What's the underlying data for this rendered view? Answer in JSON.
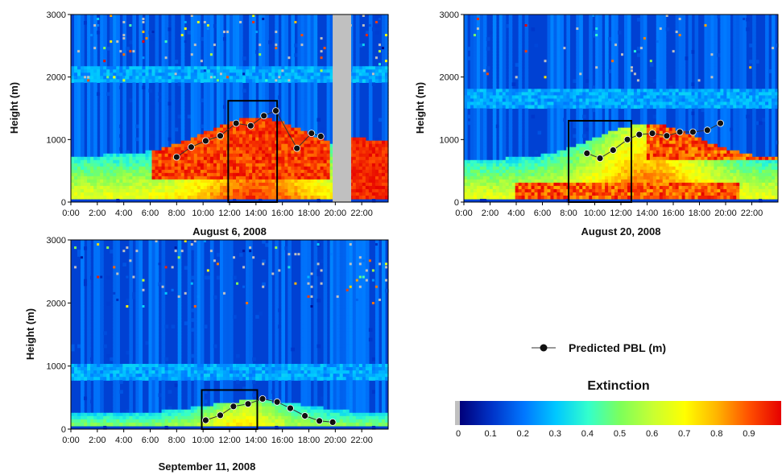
{
  "chart_data": [
    {
      "type": "heatmap",
      "title": "August 6, 2008",
      "ylabel": "Height (m)",
      "xlabel": "",
      "x_ticks": [
        "0:00",
        "2:00",
        "4:00",
        "6:00",
        "8:00",
        "10:00",
        "12:00",
        "14:00",
        "16:00",
        "18:00",
        "20:00",
        "22:00"
      ],
      "y_ticks": [
        "0",
        "1000",
        "2000",
        "3000"
      ],
      "xlim": [
        0,
        24
      ],
      "ylim": [
        0,
        3000
      ],
      "box": {
        "x0": 11.9,
        "x1": 15.6,
        "y0": 0,
        "y1": 1620
      },
      "gaps": [
        [
          19.8,
          21.2
        ]
      ],
      "features": {
        "cloud_top": 1350,
        "haze_band": 2050,
        "low_base": 400
      },
      "series": [
        {
          "name": "Predicted PBL (m)",
          "type": "line",
          "x": [
            8.0,
            9.1,
            10.2,
            11.3,
            12.5,
            13.6,
            14.6,
            15.5,
            17.1,
            18.2,
            18.9
          ],
          "y": [
            720,
            880,
            980,
            1060,
            1260,
            1220,
            1380,
            1460,
            860,
            1100,
            1050
          ]
        }
      ]
    },
    {
      "type": "heatmap",
      "title": "August 20, 2008",
      "ylabel": "Height (m)",
      "xlabel": "",
      "x_ticks": [
        "0:00",
        "2:00",
        "4:00",
        "6:00",
        "8:00",
        "10:00",
        "12:00",
        "14:00",
        "16:00",
        "18:00",
        "20:00",
        "22:00"
      ],
      "y_ticks": [
        "0",
        "1000",
        "2000",
        "3000"
      ],
      "xlim": [
        0,
        24
      ],
      "ylim": [
        0,
        3000
      ],
      "box": {
        "x0": 8.0,
        "x1": 12.8,
        "y0": 0,
        "y1": 1300
      },
      "gaps": [],
      "features": {
        "cloud_top": 1250,
        "haze_band": 1650,
        "low_base": 300
      },
      "series": [
        {
          "name": "Predicted PBL (m)",
          "type": "line",
          "x": [
            9.4,
            10.4,
            11.4,
            12.5,
            13.4,
            14.4,
            15.5,
            16.5,
            17.5,
            18.6,
            19.6
          ],
          "y": [
            780,
            700,
            830,
            1000,
            1080,
            1100,
            1060,
            1120,
            1120,
            1150,
            1260
          ]
        }
      ]
    },
    {
      "type": "heatmap",
      "title": "September 11, 2008",
      "ylabel": "Height (m)",
      "xlabel": "",
      "x_ticks": [
        "0:00",
        "2:00",
        "4:00",
        "6:00",
        "8:00",
        "10:00",
        "12:00",
        "14:00",
        "16:00",
        "18:00",
        "20:00",
        "22:00"
      ],
      "y_ticks": [
        "0",
        "1000",
        "2000",
        "3000"
      ],
      "xlim": [
        0,
        24
      ],
      "ylim": [
        0,
        3000
      ],
      "box": {
        "x0": 9.9,
        "x1": 14.1,
        "y0": 0,
        "y1": 620
      },
      "gaps": [],
      "features": {
        "cloud_top": 450,
        "haze_band": 900,
        "low_base": 120
      },
      "series": [
        {
          "name": "Predicted PBL (m)",
          "type": "line",
          "x": [
            10.2,
            11.3,
            12.3,
            13.4,
            14.5,
            15.6,
            16.6,
            17.7,
            18.8,
            19.8
          ],
          "y": [
            140,
            220,
            360,
            400,
            480,
            430,
            330,
            210,
            130,
            110
          ]
        }
      ]
    }
  ],
  "legend": {
    "label": "Predicted PBL (m)",
    "marker_color": "#111111"
  },
  "colorbar": {
    "title": "Extinction",
    "ticks": [
      "0",
      "0.1",
      "0.2",
      "0.3",
      "0.4",
      "0.5",
      "0.6",
      "0.7",
      "0.8",
      "0.9"
    ],
    "range": [
      0,
      1
    ],
    "colors": [
      "#00007a",
      "#0033c8",
      "#0077ff",
      "#00c8ff",
      "#33ffcc",
      "#7dff5a",
      "#c8ff32",
      "#ffff00",
      "#ffb400",
      "#ff5000",
      "#e60000"
    ],
    "gap_color": "#c0c0c0"
  }
}
